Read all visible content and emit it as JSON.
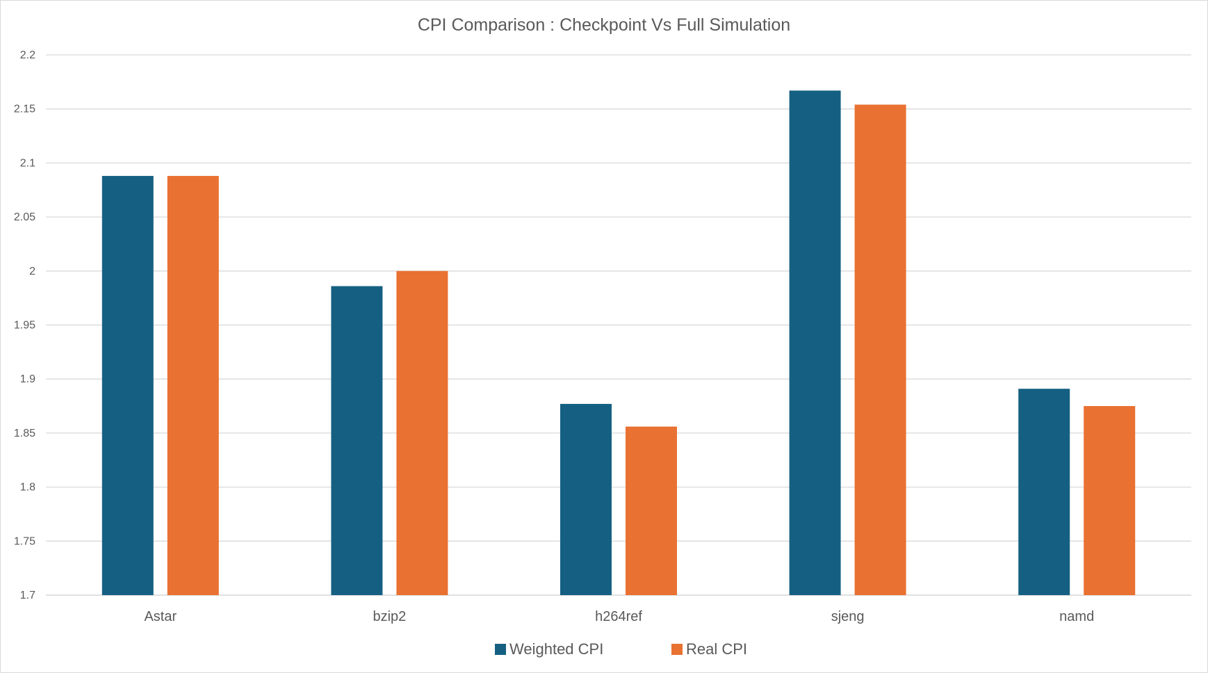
{
  "chart_data": {
    "type": "bar",
    "title": "CPI Comparison : Checkpoint Vs Full Simulation",
    "xlabel": "",
    "ylabel": "",
    "categories": [
      "Astar",
      "bzip2",
      "h264ref",
      "sjeng",
      "namd"
    ],
    "series": [
      {
        "name": "Weighted CPI",
        "color": "#156082",
        "values": [
          2.088,
          1.986,
          1.877,
          2.167,
          1.891
        ]
      },
      {
        "name": "Real CPI",
        "color": "#E97132",
        "values": [
          2.088,
          2.0,
          1.856,
          2.154,
          1.875
        ]
      }
    ],
    "ylim": [
      1.7,
      2.2
    ],
    "yticks": [
      "1.7",
      "1.75",
      "1.8",
      "1.85",
      "1.9",
      "1.95",
      "2",
      "2.05",
      "2.1",
      "2.15",
      "2.2"
    ],
    "grid": true,
    "gridline_color": "#d9d9d9",
    "legend_position": "bottom"
  }
}
